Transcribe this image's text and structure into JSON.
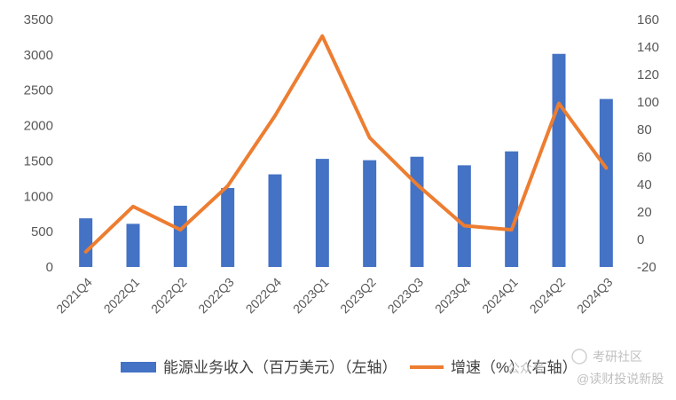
{
  "chart_data": {
    "type": "bar",
    "categories": [
      "2021Q4",
      "2022Q1",
      "2022Q2",
      "2022Q3",
      "2022Q4",
      "2023Q1",
      "2023Q2",
      "2023Q3",
      "2023Q4",
      "2024Q1",
      "2024Q2",
      "2024Q3"
    ],
    "series": [
      {
        "name": "能源业务收入（百万美元）（左轴）",
        "type": "bar",
        "axis": "left",
        "color": "#4472C4",
        "values": [
          688,
          610,
          866,
          1117,
          1310,
          1529,
          1510,
          1559,
          1438,
          1635,
          3014,
          2376
        ]
      },
      {
        "name": "增速（%）（右轴）",
        "type": "line",
        "axis": "right",
        "color": "#ED7D31",
        "values": [
          -9,
          24,
          7,
          39,
          90,
          148,
          74,
          40,
          10,
          7,
          99,
          52
        ]
      }
    ],
    "y_left": {
      "range": [
        0,
        3500
      ],
      "ticks": [
        "0",
        "500",
        "1000",
        "1500",
        "2000",
        "2500",
        "3000",
        "3500"
      ]
    },
    "y_right": {
      "range": [
        -20,
        160
      ],
      "ticks": [
        "-20",
        "0",
        "20",
        "40",
        "60",
        "80",
        "100",
        "120",
        "140",
        "160"
      ]
    },
    "legend_position": "bottom",
    "grid": false
  },
  "watermark": {
    "line1": "考研社区",
    "line2": "@读财投说新股",
    "overlay": "公众号"
  }
}
